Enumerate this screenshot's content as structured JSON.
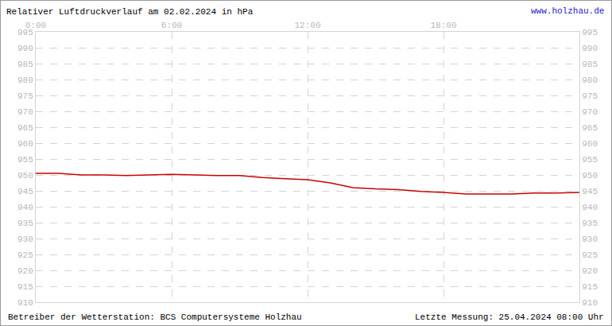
{
  "chart_data": {
    "type": "line",
    "title": "Relativer Luftdruckverlauf am 02.02.2024 in hPa",
    "annotations": [
      "www.holzhau.de",
      "Betreiber der Wetterstation: BCS Computersysteme Holzhau",
      "Letzte Messung: 25.04.2024 08:00 Uhr"
    ],
    "x": [
      0,
      1,
      2,
      3,
      4,
      5,
      6,
      7,
      8,
      9,
      10,
      11,
      12,
      13,
      13.5,
      14,
      15,
      16,
      17,
      18,
      19,
      20,
      21,
      22,
      23,
      24
    ],
    "values": [
      950.5,
      950.5,
      950.0,
      950.0,
      949.8,
      950.0,
      950.2,
      950.0,
      949.8,
      949.8,
      949.2,
      948.8,
      948.5,
      947.5,
      946.8,
      946.0,
      945.6,
      945.4,
      944.8,
      944.5,
      944.0,
      944.0,
      944.0,
      944.3,
      944.3,
      944.5
    ],
    "color": "#cc0000",
    "xlim": [
      0,
      24
    ],
    "xticks": [
      {
        "value": 0,
        "label": "0:00"
      },
      {
        "value": 6,
        "label": "6:00"
      },
      {
        "value": 12,
        "label": "12:00"
      },
      {
        "value": 18,
        "label": "18:00"
      }
    ],
    "ylim": [
      910,
      995
    ],
    "yticks": [
      910,
      915,
      920,
      925,
      930,
      935,
      940,
      945,
      950,
      955,
      960,
      965,
      970,
      975,
      980,
      985,
      990,
      995
    ],
    "y2lim": [
      910,
      995
    ],
    "y2ticks": [
      910,
      915,
      920,
      925,
      930,
      935,
      940,
      945,
      950,
      955,
      960,
      965,
      970,
      975,
      980,
      985,
      990,
      995
    ],
    "grid": true
  }
}
